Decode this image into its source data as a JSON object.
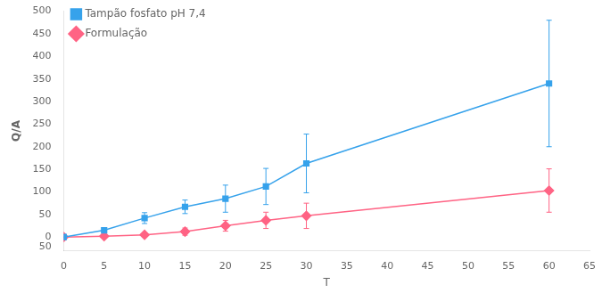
{
  "chart_data": {
    "type": "line",
    "xlabel": "T",
    "ylabel": "Q/A",
    "x": [
      0,
      5,
      10,
      15,
      20,
      25,
      30,
      60
    ],
    "xlim": [
      0,
      65
    ],
    "ylim": [
      -30,
      500
    ],
    "xticks": [
      0,
      5,
      10,
      15,
      20,
      25,
      30,
      35,
      40,
      45,
      50,
      55,
      60,
      65
    ],
    "yticks": [
      0,
      50,
      100,
      150,
      200,
      250,
      300,
      350,
      400,
      450,
      500
    ],
    "grid": false,
    "legend": "upper left",
    "annotations": [
      {
        "text": "50",
        "x": -1.5,
        "y": -22
      }
    ],
    "series": [
      {
        "name": "Tampão fosfato pH 7,4",
        "marker": "square",
        "values": [
          0,
          15,
          42,
          67,
          85,
          112,
          163,
          340
        ],
        "yerr_low": [
          0,
          5,
          12,
          15,
          30,
          40,
          65,
          140
        ],
        "yerr_high": [
          0,
          5,
          12,
          15,
          30,
          40,
          65,
          140
        ]
      },
      {
        "name": "Formulação",
        "marker": "diamond",
        "values": [
          0,
          2,
          5,
          12,
          25,
          37,
          47,
          103
        ],
        "yerr_low": [
          0,
          2,
          4,
          8,
          12,
          18,
          28,
          48
        ],
        "yerr_high": [
          0,
          2,
          4,
          8,
          12,
          18,
          28,
          48
        ]
      }
    ]
  }
}
